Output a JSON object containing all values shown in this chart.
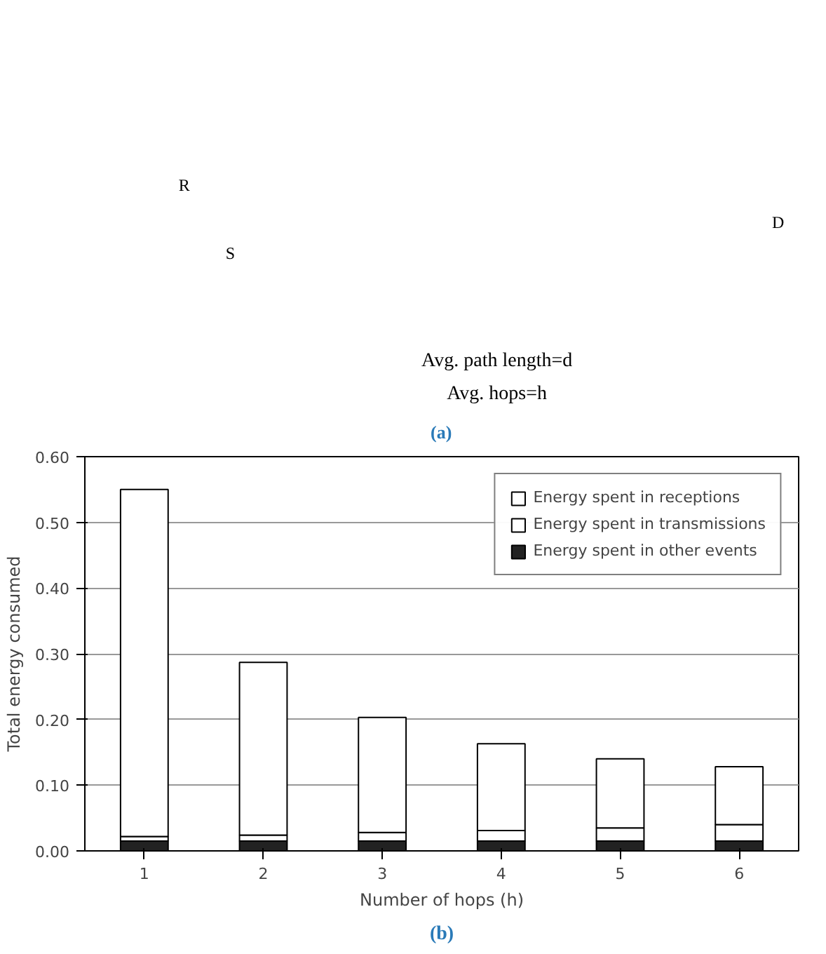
{
  "chart_data": [
    {
      "type": "other",
      "annotations": [
        "R",
        "S",
        "D",
        "Avg. path length=d",
        "Avg. hops=h",
        "(a)"
      ]
    },
    {
      "type": "bar",
      "stacked": true,
      "xlabel": "Number of hops (h)",
      "ylabel": "Total energy consumed",
      "categories": [
        "1",
        "2",
        "3",
        "4",
        "5",
        "6"
      ],
      "series": [
        {
          "name": "Energy spent in other events",
          "color": "#222222",
          "values": [
            0.015,
            0.015,
            0.015,
            0.015,
            0.015,
            0.015
          ]
        },
        {
          "name": "Energy spent in transmissions",
          "color": "#ffffff",
          "values": [
            0.007,
            0.009,
            0.013,
            0.016,
            0.02,
            0.025
          ]
        },
        {
          "name": "Energy spent in receptions",
          "color": "#ffffff",
          "values": [
            0.528,
            0.263,
            0.175,
            0.132,
            0.105,
            0.088
          ]
        }
      ],
      "ylim": [
        0,
        0.6
      ],
      "yticks": [
        {
          "value": 0,
          "label": "0.00"
        },
        {
          "value": 0.1,
          "label": "0.10"
        },
        {
          "value": 0.2,
          "label": "0.20"
        },
        {
          "value": 0.3,
          "label": "0.30"
        },
        {
          "value": 0.4,
          "label": "0.40"
        },
        {
          "value": 0.5,
          "label": "0.50"
        },
        {
          "value": 0.6,
          "label": "0.60"
        }
      ],
      "grid": "y",
      "legend": "top right",
      "annotations": [
        "(b)"
      ]
    }
  ]
}
